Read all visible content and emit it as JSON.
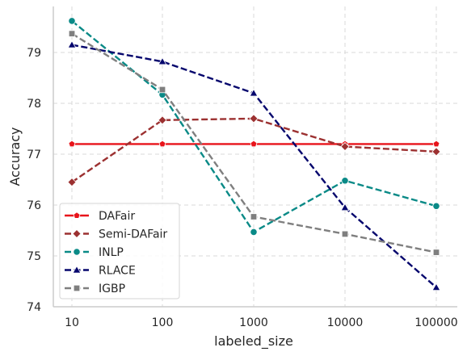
{
  "chart_data": {
    "type": "line",
    "xlabel": "labeled_size",
    "ylabel": "Accuracy",
    "x_scale": "log",
    "categories": [
      "10",
      "100",
      "1000",
      "10000",
      "100000"
    ],
    "x": [
      10,
      100,
      1000,
      10000,
      100000
    ],
    "ylim": [
      74,
      79.85
    ],
    "y_ticks": [
      "74",
      "75",
      "76",
      "77",
      "78",
      "79"
    ],
    "grid": true,
    "legend_position": "lower-left",
    "series": [
      {
        "name": "DAFair",
        "values": [
          77.2,
          77.2,
          77.2,
          77.2,
          77.2
        ],
        "color": "#e8141b",
        "dash": "solid",
        "marker": "pentagon"
      },
      {
        "name": "Semi-DAFair",
        "values": [
          76.45,
          77.67,
          77.7,
          77.15,
          77.05
        ],
        "color": "#9c3131",
        "dash": "dashed",
        "marker": "diamond"
      },
      {
        "name": "INLP",
        "values": [
          79.62,
          78.17,
          75.47,
          76.48,
          75.98
        ],
        "color": "#0a8a87",
        "dash": "dashed",
        "marker": "circle"
      },
      {
        "name": "RLACE",
        "values": [
          79.15,
          78.82,
          78.2,
          75.95,
          74.38
        ],
        "color": "#05066d",
        "dash": "dashed",
        "marker": "triangle"
      },
      {
        "name": "IGBP",
        "values": [
          79.37,
          78.27,
          75.77,
          75.43,
          75.07
        ],
        "color": "#7f7f7f",
        "dash": "dashed",
        "marker": "square"
      }
    ]
  }
}
